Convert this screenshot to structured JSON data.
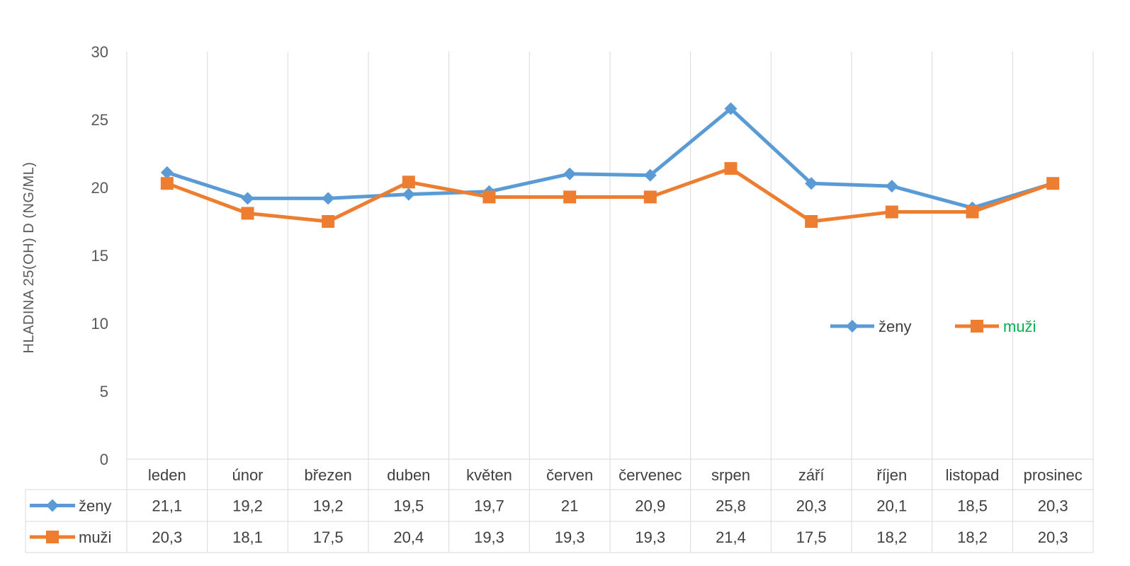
{
  "chart_data": {
    "type": "line",
    "title": "",
    "ylabel": "HLADINA 25(OH) D (NG/ML)",
    "xlabel": "",
    "ylim": [
      0,
      30
    ],
    "yticks": [
      "0",
      "5",
      "10",
      "15",
      "20",
      "25",
      "30"
    ],
    "grid": "vertical",
    "legend_position": "right",
    "has_data_table": true,
    "categories": [
      "leden",
      "únor",
      "březen",
      "duben",
      "květen",
      "červen",
      "červenec",
      "srpen",
      "září",
      "říjen",
      "listopad",
      "prosinec"
    ],
    "series": [
      {
        "name": "ženy",
        "color": "#5b9bd5",
        "marker": "diamond",
        "values": [
          21.1,
          19.2,
          19.2,
          19.5,
          19.7,
          21,
          20.9,
          25.8,
          20.3,
          20.1,
          18.5,
          20.3
        ],
        "labels": [
          "21,1",
          "19,2",
          "19,2",
          "19,5",
          "19,7",
          "21",
          "20,9",
          "25,8",
          "20,3",
          "20,1",
          "18,5",
          "20,3"
        ]
      },
      {
        "name": "muži",
        "color": "#ed7d31",
        "marker": "square",
        "legend_text_color": "#00b050",
        "values": [
          20.3,
          18.1,
          17.5,
          20.4,
          19.3,
          19.3,
          19.3,
          21.4,
          17.5,
          18.2,
          18.2,
          20.3
        ],
        "labels": [
          "20,3",
          "18,1",
          "17,5",
          "20,4",
          "19,3",
          "19,3",
          "19,3",
          "21,4",
          "17,5",
          "18,2",
          "18,2",
          "20,3"
        ]
      }
    ]
  }
}
